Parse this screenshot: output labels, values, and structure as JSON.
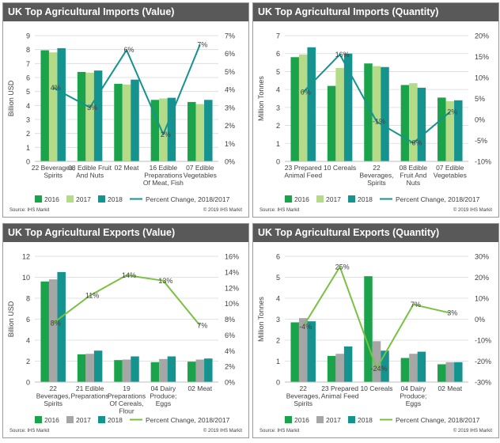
{
  "colors": {
    "2016": "#1aa34a",
    "2017": "#b3db88",
    "2017_exports": "#a6a6a6",
    "2018": "#15938f",
    "pct_imports": "#15938f",
    "pct_exports": "#7ac143",
    "title_bg": "#595959",
    "gridline": "#d9d9d9"
  },
  "chart_data": [
    {
      "id": "imports-value",
      "type": "bar",
      "title": "UK Top Agricultural Imports (Value)",
      "ylabel": "Billion USD",
      "ylim": [
        0,
        9
      ],
      "yticks": [
        "0",
        "1",
        "2",
        "3",
        "4",
        "5",
        "6",
        "7",
        "8",
        "9"
      ],
      "y2lim": [
        0,
        7
      ],
      "y2ticks": [
        "0%",
        "1%",
        "2%",
        "3%",
        "4%",
        "5%",
        "6%",
        "7%"
      ],
      "categories": [
        [
          "22 Beverages,",
          "Spirits"
        ],
        [
          "08 Edible Fruit",
          "And Nuts"
        ],
        [
          "02 Meat"
        ],
        [
          "16 Edible",
          "Preparations",
          "Of Meat, Fish"
        ],
        [
          "07 Edible",
          "Vegetables"
        ]
      ],
      "series": [
        {
          "name": "2016",
          "values": [
            7.95,
            6.4,
            5.55,
            4.4,
            4.25
          ]
        },
        {
          "name": "2017",
          "values": [
            7.8,
            6.35,
            5.5,
            4.5,
            4.1
          ]
        },
        {
          "name": "2018",
          "values": [
            8.1,
            6.5,
            5.85,
            4.55,
            4.4
          ]
        }
      ],
      "line": {
        "name": "Percent Change, 2018/2017",
        "values": [
          4.1,
          3.0,
          6.2,
          1.5,
          6.5
        ],
        "labels": [
          "4%",
          "3%",
          "6%",
          "2%",
          "7%"
        ]
      },
      "legend": "bottom",
      "source": "Source: IHS Markit",
      "copyright": "© 2019 IHS Markit"
    },
    {
      "id": "imports-quantity",
      "type": "bar",
      "title": "UK Top Agricultural Imports (Quantity)",
      "ylabel": "Million Tonnes",
      "ylim": [
        0,
        7
      ],
      "yticks": [
        "0",
        "1",
        "2",
        "3",
        "4",
        "5",
        "6",
        "7"
      ],
      "y2lim": [
        -10,
        20
      ],
      "y2ticks": [
        "-10%",
        "-5%",
        "0%",
        "5%",
        "10%",
        "15%",
        "20%"
      ],
      "categories": [
        [
          "23 Prepared",
          "Animal Feed"
        ],
        [
          "10 Cereals"
        ],
        [
          "22",
          "Beverages,",
          "Spirits"
        ],
        [
          "08 Edible",
          "Fruit And",
          "Nuts"
        ],
        [
          "07 Edible",
          "Vegetables"
        ]
      ],
      "series": [
        {
          "name": "2016",
          "values": [
            5.8,
            4.2,
            5.45,
            4.25,
            3.55
          ]
        },
        {
          "name": "2017",
          "values": [
            5.95,
            5.2,
            5.3,
            4.35,
            3.35
          ]
        },
        {
          "name": "2018",
          "values": [
            6.35,
            6.0,
            5.25,
            4.1,
            3.4
          ]
        }
      ],
      "line": {
        "name": "Percent Change, 2018/2017",
        "values": [
          6.5,
          15.5,
          -0.5,
          -5.6,
          1.8
        ],
        "labels": [
          "6%",
          "16%",
          "-1%",
          "-6%",
          "2%"
        ]
      },
      "legend": "bottom",
      "source": "Source: IHS Markit",
      "copyright": "© 2019 IHS Markit"
    },
    {
      "id": "exports-value",
      "type": "bar",
      "title": "UK Top Agricultural Exports (Value)",
      "ylabel": "Billion USD",
      "ylim": [
        0,
        12
      ],
      "yticks": [
        "0",
        "2",
        "4",
        "6",
        "8",
        "10",
        "12"
      ],
      "y2lim": [
        0,
        16
      ],
      "y2ticks": [
        "0%",
        "2%",
        "4%",
        "6%",
        "8%",
        "10%",
        "12%",
        "14%",
        "16%"
      ],
      "categories": [
        [
          "22",
          "Beverages,",
          "Spirits"
        ],
        [
          "21 Edible",
          "Preparations"
        ],
        [
          "19",
          "Preparations",
          "Of Cereals,",
          "Flour"
        ],
        [
          "04 Dairy",
          "Produce;",
          "Eggs"
        ],
        [
          "02 Meat"
        ]
      ],
      "series": [
        {
          "name": "2016",
          "values": [
            9.6,
            2.65,
            2.1,
            1.9,
            1.95
          ]
        },
        {
          "name": "2017",
          "values": [
            9.8,
            2.7,
            2.15,
            2.2,
            2.15
          ]
        },
        {
          "name": "2018",
          "values": [
            10.5,
            3.0,
            2.45,
            2.45,
            2.25
          ]
        }
      ],
      "line": {
        "name": "Percent Change, 2018/2017",
        "values": [
          7.5,
          11.0,
          13.6,
          12.9,
          7.2
        ],
        "labels": [
          "8%",
          "11%",
          "14%",
          "13%",
          "7%"
        ]
      },
      "legend": "bottom",
      "source": "Source: IHS Markit",
      "copyright": "© 2019 IHS Markit"
    },
    {
      "id": "exports-quantity",
      "type": "bar",
      "title": "UK Top Agricultural Exports (Quantity)",
      "ylabel": "Million Tonnes",
      "ylim": [
        0,
        6
      ],
      "yticks": [
        "0",
        "1",
        "2",
        "3",
        "4",
        "5",
        "6"
      ],
      "y2lim": [
        -30,
        30
      ],
      "y2ticks": [
        "-30%",
        "-20%",
        "-10%",
        "0%",
        "10%",
        "20%",
        "30%"
      ],
      "categories": [
        [
          "22",
          "Beverages,",
          "Spirits"
        ],
        [
          "23 Prepared",
          "Animal Feed"
        ],
        [
          "10 Cereals"
        ],
        [
          "04 Dairy",
          "Produce;",
          "Eggs"
        ],
        [
          "02 Meat"
        ]
      ],
      "series": [
        {
          "name": "2016",
          "values": [
            2.85,
            1.25,
            5.05,
            1.15,
            0.85
          ]
        },
        {
          "name": "2017",
          "values": [
            3.05,
            1.35,
            1.95,
            1.35,
            0.95
          ]
        },
        {
          "name": "2018",
          "values": [
            2.9,
            1.7,
            1.5,
            1.45,
            0.95
          ]
        }
      ],
      "line": {
        "name": "Percent Change, 2018/2017",
        "values": [
          -3.5,
          25.0,
          -23.5,
          7.0,
          3.0
        ],
        "labels": [
          "-4%",
          "25%",
          "-24%",
          "7%",
          "3%"
        ]
      },
      "legend": "bottom",
      "source": "Source: IHS Markit",
      "copyright": "© 2019 IHS Markit"
    }
  ]
}
